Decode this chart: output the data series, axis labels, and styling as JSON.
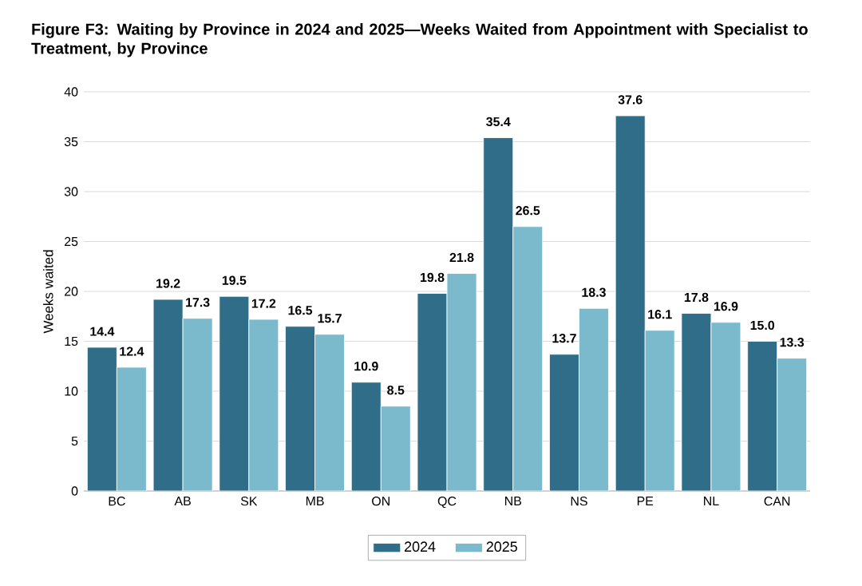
{
  "chart_data": {
    "type": "bar",
    "title": "Figure F3: Waiting by Province in 2024 and 2025—Weeks Waited from Appointment with Specialist to Treatment, by Province",
    "ylabel": "Weeks waited",
    "categories": [
      "BC",
      "AB",
      "SK",
      "MB",
      "ON",
      "QC",
      "NB",
      "NS",
      "PE",
      "NL",
      "CAN"
    ],
    "series": [
      {
        "name": "2024",
        "color": "#2f6d88",
        "values": [
          14.4,
          19.2,
          19.5,
          16.5,
          10.9,
          19.8,
          35.4,
          13.7,
          37.6,
          17.8,
          15.0
        ],
        "value_labels": [
          "14.4",
          "19.2",
          "19.5",
          "16.5",
          "10.9",
          "19.8",
          "35.4",
          "13.7",
          "37.6",
          "17.8",
          "15.0"
        ]
      },
      {
        "name": "2025",
        "color": "#7bbacd",
        "values": [
          12.4,
          17.3,
          17.2,
          15.7,
          8.5,
          21.8,
          26.5,
          18.3,
          16.1,
          16.9,
          13.3
        ],
        "value_labels": [
          "12.4",
          "17.3",
          "17.2",
          "15.7",
          "8.5",
          "21.8",
          "26.5",
          "18.3",
          "16.1",
          "16.9",
          "13.3"
        ]
      }
    ],
    "ylim": [
      0,
      40
    ],
    "yticks": [
      0,
      5,
      10,
      15,
      20,
      25,
      30,
      35,
      40
    ],
    "grid": "y",
    "legend": "bottom"
  }
}
